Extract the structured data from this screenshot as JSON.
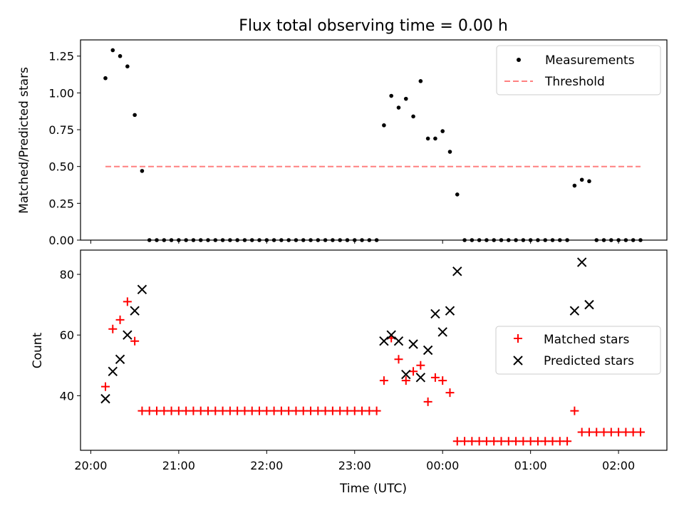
{
  "chart_data": [
    {
      "type": "scatter",
      "title": "Flux total observing time = 0.00 h",
      "ylabel": "Matched/Predicted stars",
      "xlabel": "",
      "ylim": [
        0,
        1.36
      ],
      "yticks": [
        "0.00",
        "0.25",
        "0.50",
        "0.75",
        "1.00",
        "1.25"
      ],
      "ytick_values": [
        0,
        0.25,
        0.5,
        0.75,
        1.0,
        1.25
      ],
      "legend": {
        "placement": "top-right",
        "entries": [
          "Measurements",
          "Threshold"
        ]
      },
      "threshold": {
        "name": "Threshold",
        "value": 0.5,
        "x_range": [
          "20:10",
          "02:15"
        ],
        "color": "#ff8080",
        "style": "dashed"
      },
      "series": [
        {
          "name": "Measurements",
          "color": "#000000",
          "marker": "dot",
          "points": [
            [
              "20:10",
              1.1
            ],
            [
              "20:15",
              1.29
            ],
            [
              "20:20",
              1.25
            ],
            [
              "20:25",
              1.18
            ],
            [
              "20:30",
              0.85
            ],
            [
              "20:35",
              0.47
            ],
            [
              "20:40",
              0
            ],
            [
              "20:45",
              0
            ],
            [
              "20:50",
              0
            ],
            [
              "20:55",
              0
            ],
            [
              "21:00",
              0
            ],
            [
              "21:05",
              0
            ],
            [
              "21:10",
              0
            ],
            [
              "21:15",
              0
            ],
            [
              "21:20",
              0
            ],
            [
              "21:25",
              0
            ],
            [
              "21:30",
              0
            ],
            [
              "21:35",
              0
            ],
            [
              "21:40",
              0
            ],
            [
              "21:45",
              0
            ],
            [
              "21:50",
              0
            ],
            [
              "21:55",
              0
            ],
            [
              "22:00",
              0
            ],
            [
              "22:05",
              0
            ],
            [
              "22:10",
              0
            ],
            [
              "22:15",
              0
            ],
            [
              "22:20",
              0
            ],
            [
              "22:25",
              0
            ],
            [
              "22:30",
              0
            ],
            [
              "22:35",
              0
            ],
            [
              "22:40",
              0
            ],
            [
              "22:45",
              0
            ],
            [
              "22:50",
              0
            ],
            [
              "22:55",
              0
            ],
            [
              "23:00",
              0
            ],
            [
              "23:05",
              0
            ],
            [
              "23:10",
              0
            ],
            [
              "23:15",
              0
            ],
            [
              "23:20",
              0.78
            ],
            [
              "23:25",
              0.98
            ],
            [
              "23:30",
              0.9
            ],
            [
              "23:35",
              0.96
            ],
            [
              "23:40",
              0.84
            ],
            [
              "23:45",
              1.08
            ],
            [
              "23:50",
              0.69
            ],
            [
              "23:55",
              0.69
            ],
            [
              "00:00",
              0.74
            ],
            [
              "00:05",
              0.6
            ],
            [
              "00:10",
              0.31
            ],
            [
              "00:15",
              0
            ],
            [
              "00:20",
              0
            ],
            [
              "00:25",
              0
            ],
            [
              "00:30",
              0
            ],
            [
              "00:35",
              0
            ],
            [
              "00:40",
              0
            ],
            [
              "00:45",
              0
            ],
            [
              "00:50",
              0
            ],
            [
              "00:55",
              0
            ],
            [
              "01:00",
              0
            ],
            [
              "01:05",
              0
            ],
            [
              "01:10",
              0
            ],
            [
              "01:15",
              0
            ],
            [
              "01:20",
              0
            ],
            [
              "01:25",
              0
            ],
            [
              "01:30",
              0.37
            ],
            [
              "01:35",
              0.41
            ],
            [
              "01:40",
              0.4
            ],
            [
              "01:45",
              0
            ],
            [
              "01:50",
              0
            ],
            [
              "01:55",
              0
            ],
            [
              "02:00",
              0
            ],
            [
              "02:05",
              0
            ],
            [
              "02:10",
              0
            ],
            [
              "02:15",
              0
            ]
          ]
        }
      ]
    },
    {
      "type": "scatter",
      "title": "",
      "ylabel": "Count",
      "xlabel": "Time (UTC)",
      "ylim": [
        22,
        88
      ],
      "yticks": [
        "40",
        "60",
        "80"
      ],
      "ytick_values": [
        40,
        60,
        80
      ],
      "xticks": [
        "20:00",
        "21:00",
        "22:00",
        "23:00",
        "00:00",
        "01:00",
        "02:00"
      ],
      "xlim": [
        "19:53",
        "02:33"
      ],
      "legend": {
        "placement": "center-right",
        "entries": [
          "Matched stars",
          "Predicted stars"
        ]
      },
      "series": [
        {
          "name": "Matched stars",
          "color": "#ff0000",
          "marker": "plus",
          "points": [
            [
              "20:10",
              43
            ],
            [
              "20:15",
              62
            ],
            [
              "20:20",
              65
            ],
            [
              "20:25",
              71
            ],
            [
              "20:30",
              58
            ],
            [
              "20:35",
              35
            ],
            [
              "20:40",
              35
            ],
            [
              "20:45",
              35
            ],
            [
              "20:50",
              35
            ],
            [
              "20:55",
              35
            ],
            [
              "21:00",
              35
            ],
            [
              "21:05",
              35
            ],
            [
              "21:10",
              35
            ],
            [
              "21:15",
              35
            ],
            [
              "21:20",
              35
            ],
            [
              "21:25",
              35
            ],
            [
              "21:30",
              35
            ],
            [
              "21:35",
              35
            ],
            [
              "21:40",
              35
            ],
            [
              "21:45",
              35
            ],
            [
              "21:50",
              35
            ],
            [
              "21:55",
              35
            ],
            [
              "22:00",
              35
            ],
            [
              "22:05",
              35
            ],
            [
              "22:10",
              35
            ],
            [
              "22:15",
              35
            ],
            [
              "22:20",
              35
            ],
            [
              "22:25",
              35
            ],
            [
              "22:30",
              35
            ],
            [
              "22:35",
              35
            ],
            [
              "22:40",
              35
            ],
            [
              "22:45",
              35
            ],
            [
              "22:50",
              35
            ],
            [
              "22:55",
              35
            ],
            [
              "23:00",
              35
            ],
            [
              "23:05",
              35
            ],
            [
              "23:10",
              35
            ],
            [
              "23:15",
              35
            ],
            [
              "23:20",
              45
            ],
            [
              "23:25",
              59
            ],
            [
              "23:30",
              52
            ],
            [
              "23:35",
              45
            ],
            [
              "23:40",
              48
            ],
            [
              "23:45",
              50
            ],
            [
              "23:50",
              38
            ],
            [
              "23:55",
              46
            ],
            [
              "00:00",
              45
            ],
            [
              "00:05",
              41
            ],
            [
              "00:10",
              25
            ],
            [
              "00:15",
              25
            ],
            [
              "00:20",
              25
            ],
            [
              "00:25",
              25
            ],
            [
              "00:30",
              25
            ],
            [
              "00:35",
              25
            ],
            [
              "00:40",
              25
            ],
            [
              "00:45",
              25
            ],
            [
              "00:50",
              25
            ],
            [
              "00:55",
              25
            ],
            [
              "01:00",
              25
            ],
            [
              "01:05",
              25
            ],
            [
              "01:10",
              25
            ],
            [
              "01:15",
              25
            ],
            [
              "01:20",
              25
            ],
            [
              "01:25",
              25
            ],
            [
              "01:30",
              35
            ],
            [
              "01:35",
              28
            ],
            [
              "01:40",
              28
            ],
            [
              "01:45",
              28
            ],
            [
              "01:50",
              28
            ],
            [
              "01:55",
              28
            ],
            [
              "02:00",
              28
            ],
            [
              "02:05",
              28
            ],
            [
              "02:10",
              28
            ],
            [
              "02:15",
              28
            ]
          ]
        },
        {
          "name": "Predicted stars",
          "color": "#000000",
          "marker": "x",
          "points": [
            [
              "20:10",
              39
            ],
            [
              "20:15",
              48
            ],
            [
              "20:20",
              52
            ],
            [
              "20:25",
              60
            ],
            [
              "20:30",
              68
            ],
            [
              "20:35",
              75
            ],
            [
              "23:20",
              58
            ],
            [
              "23:25",
              60
            ],
            [
              "23:30",
              58
            ],
            [
              "23:35",
              47
            ],
            [
              "23:40",
              57
            ],
            [
              "23:45",
              46
            ],
            [
              "23:50",
              55
            ],
            [
              "23:55",
              67
            ],
            [
              "00:00",
              61
            ],
            [
              "00:05",
              68
            ],
            [
              "00:10",
              81
            ],
            [
              "01:30",
              68
            ],
            [
              "01:35",
              84
            ],
            [
              "01:40",
              70
            ]
          ]
        }
      ]
    }
  ]
}
